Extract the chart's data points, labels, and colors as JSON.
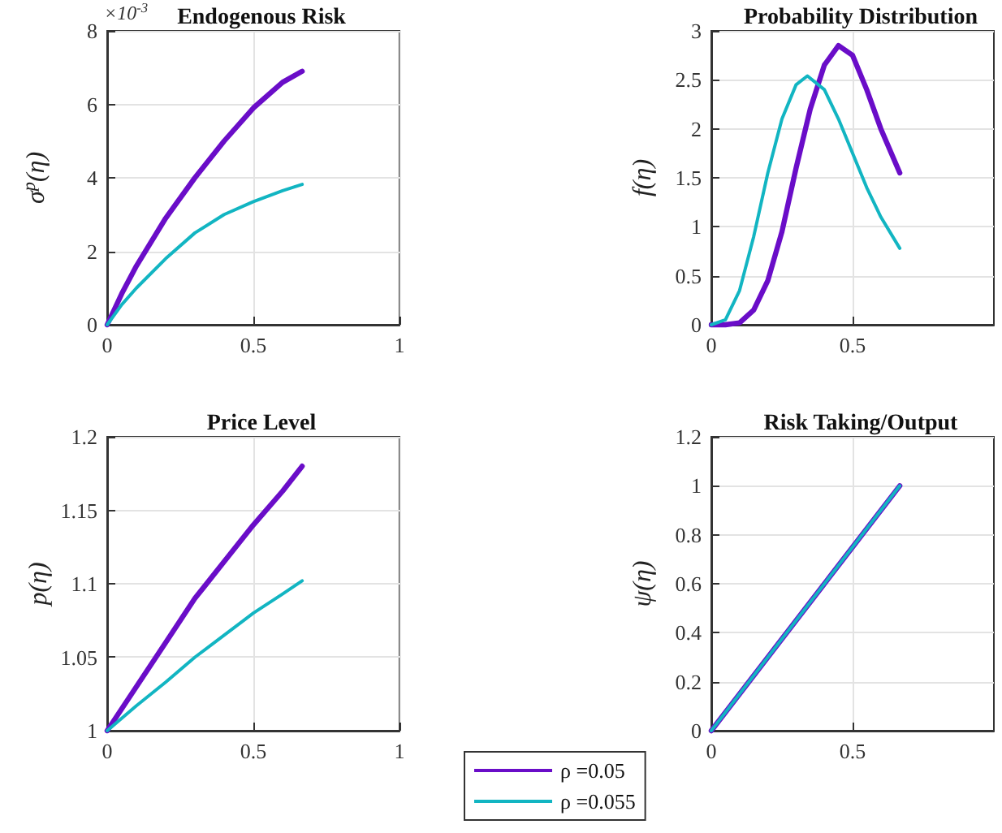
{
  "chart_data": [
    {
      "type": "line",
      "title": "Endogenous Risk",
      "ylabel": "σ$^{p}$(η)",
      "annotations": [
        "×10$^{-3}$"
      ],
      "xlim": [
        0,
        1
      ],
      "xticks": [
        0,
        0.5,
        1
      ],
      "ylim": [
        0,
        8
      ],
      "yticks": [
        0,
        2,
        4,
        6,
        8
      ],
      "grid": true,
      "legend": "bottom",
      "series": [
        {
          "name": "ρ =0.05",
          "color": "#6a0dc8",
          "x": [
            0,
            0.05,
            0.1,
            0.2,
            0.3,
            0.4,
            0.5,
            0.6,
            0.667
          ],
          "values": [
            0,
            0.85,
            1.6,
            2.9,
            4.0,
            5.0,
            5.9,
            6.6,
            6.9
          ]
        },
        {
          "name": "ρ =0.055",
          "color": "#12b5c2",
          "x": [
            0,
            0.05,
            0.1,
            0.2,
            0.3,
            0.4,
            0.5,
            0.6,
            0.667
          ],
          "values": [
            0,
            0.55,
            1.0,
            1.8,
            2.5,
            3.0,
            3.35,
            3.65,
            3.82
          ]
        }
      ]
    },
    {
      "type": "line",
      "title": "Probability Distribution",
      "ylabel": "f(η)",
      "xlim": [
        0,
        1
      ],
      "xticks": [
        0,
        0.5
      ],
      "ylim": [
        0,
        3
      ],
      "yticks": [
        0,
        0.5,
        1,
        1.5,
        2,
        2.5,
        3
      ],
      "grid": true,
      "legend": "bottom",
      "series": [
        {
          "name": "ρ =0.05",
          "color": "#6a0dc8",
          "x": [
            0,
            0.05,
            0.1,
            0.15,
            0.2,
            0.25,
            0.3,
            0.35,
            0.4,
            0.45,
            0.5,
            0.55,
            0.6,
            0.667
          ],
          "values": [
            0,
            0,
            0.02,
            0.15,
            0.45,
            0.95,
            1.6,
            2.2,
            2.65,
            2.85,
            2.75,
            2.4,
            2.0,
            1.55
          ]
        },
        {
          "name": "ρ =0.055",
          "color": "#12b5c2",
          "x": [
            0,
            0.05,
            0.1,
            0.15,
            0.2,
            0.25,
            0.3,
            0.34,
            0.4,
            0.45,
            0.5,
            0.55,
            0.6,
            0.667
          ],
          "values": [
            0,
            0.05,
            0.35,
            0.9,
            1.55,
            2.1,
            2.45,
            2.54,
            2.4,
            2.1,
            1.75,
            1.4,
            1.1,
            0.78
          ]
        }
      ]
    },
    {
      "type": "line",
      "title": "Price Level",
      "ylabel": "p(η)",
      "xlim": [
        0,
        1
      ],
      "xticks": [
        0,
        0.5,
        1
      ],
      "ylim": [
        1,
        1.2
      ],
      "yticks": [
        1,
        1.05,
        1.1,
        1.15,
        1.2
      ],
      "grid": true,
      "legend": "bottom",
      "series": [
        {
          "name": "ρ =0.05",
          "color": "#6a0dc8",
          "x": [
            0,
            0.1,
            0.2,
            0.3,
            0.4,
            0.5,
            0.6,
            0.667
          ],
          "values": [
            1,
            1.03,
            1.06,
            1.09,
            1.115,
            1.14,
            1.163,
            1.18
          ]
        },
        {
          "name": "ρ =0.055",
          "color": "#12b5c2",
          "x": [
            0,
            0.1,
            0.2,
            0.3,
            0.4,
            0.5,
            0.6,
            0.667
          ],
          "values": [
            1,
            1.017,
            1.033,
            1.05,
            1.065,
            1.08,
            1.093,
            1.102
          ]
        }
      ]
    },
    {
      "type": "line",
      "title": "Risk Taking/Output",
      "ylabel": "ψ(η)",
      "xlim": [
        0,
        1
      ],
      "xticks": [
        0,
        0.5
      ],
      "ylim": [
        0,
        1.2
      ],
      "yticks": [
        0,
        0.2,
        0.4,
        0.6,
        0.8,
        1,
        1.2
      ],
      "grid": true,
      "legend": "bottom",
      "series": [
        {
          "name": "ρ =0.05",
          "color": "#6a0dc8",
          "x": [
            0,
            0.667
          ],
          "values": [
            0,
            1
          ]
        },
        {
          "name": "ρ =0.055",
          "color": "#12b5c2",
          "x": [
            0,
            0.667
          ],
          "values": [
            0,
            1
          ]
        }
      ]
    }
  ]
}
